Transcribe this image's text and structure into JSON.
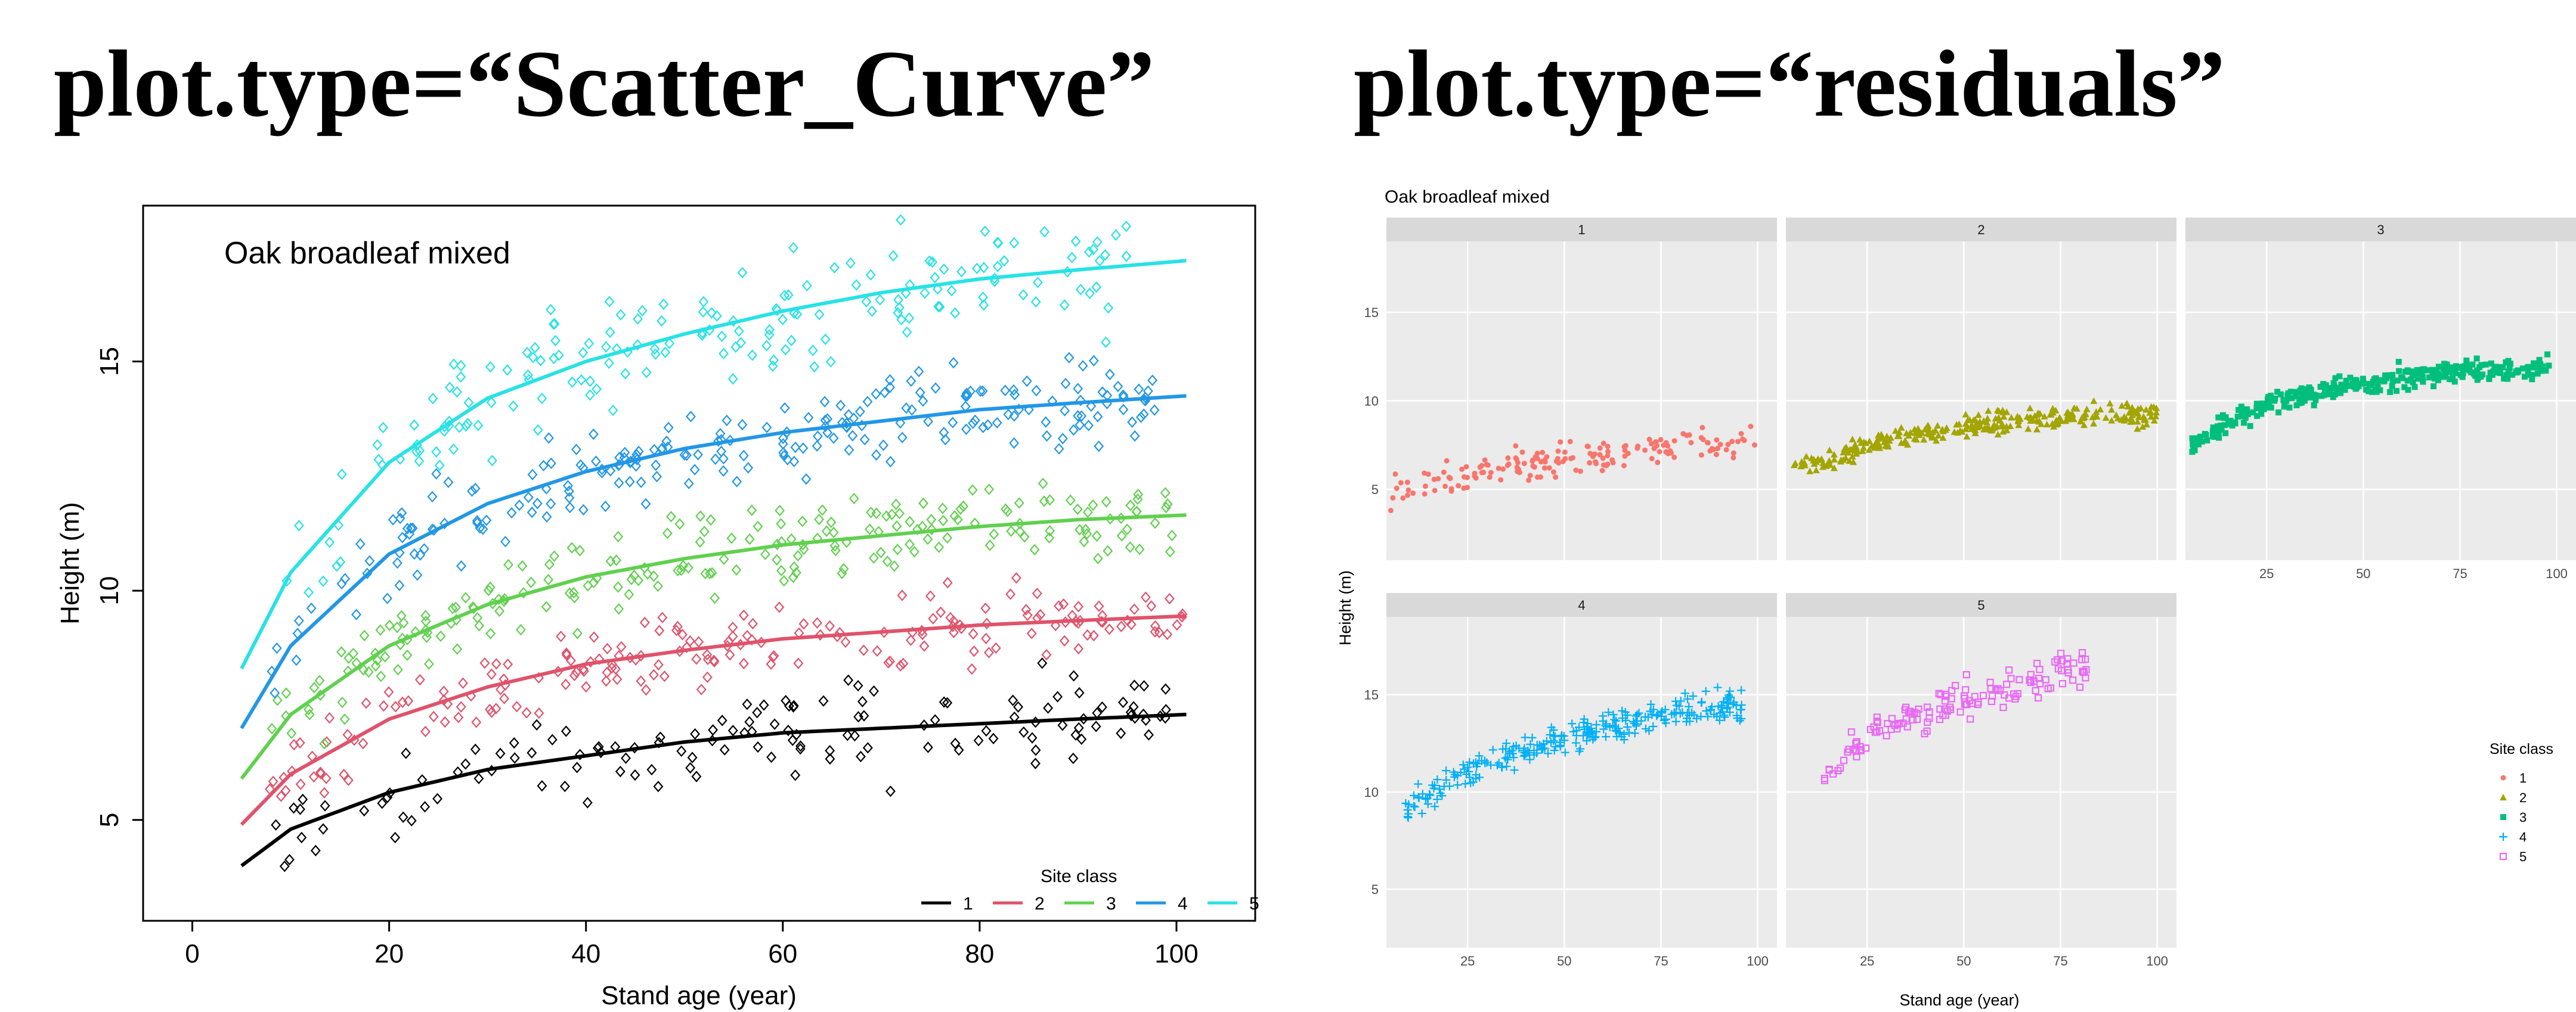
{
  "panels": {
    "left_heading": "plot.type=“Scatter_Curve”",
    "right_heading": "plot.type=“residuals”"
  },
  "colors": {
    "site_1": "#000000",
    "site_2": "#DF536B",
    "site_3": "#61D04F",
    "site_4": "#2297E6",
    "site_5": "#28E2E5",
    "facet_1": "#F8766D",
    "facet_2": "#A3A500",
    "facet_3": "#00BF7D",
    "facet_4": "#00B0F6",
    "facet_5": "#E76BF3",
    "ggplot_panel": "#EBEBEB",
    "ggplot_strip": "#D9D9D9"
  },
  "chart_data": [
    {
      "type": "scatter",
      "title": "Oak broadleaf mixed",
      "xlabel": "Stand age (year)",
      "ylabel": "Height (m)",
      "xlim": [
        -5,
        108
      ],
      "ylim": [
        2.8,
        18.4
      ],
      "x_ticks": [
        0,
        20,
        40,
        60,
        80,
        100
      ],
      "y_ticks": [
        5,
        10,
        15
      ],
      "grid": false,
      "legend": {
        "title": "Site class",
        "position": "bottom-right",
        "orientation": "horizontal",
        "entries": [
          "1",
          "2",
          "3",
          "4",
          "5"
        ]
      },
      "fitted_curves": [
        {
          "name": "1",
          "x": [
            5,
            10,
            20,
            30,
            40,
            50,
            60,
            70,
            80,
            90,
            101
          ],
          "y": [
            4.0,
            4.8,
            5.6,
            6.1,
            6.4,
            6.7,
            6.9,
            7.0,
            7.1,
            7.2,
            7.3
          ]
        },
        {
          "name": "2",
          "x": [
            5,
            10,
            20,
            30,
            40,
            50,
            60,
            70,
            80,
            90,
            101
          ],
          "y": [
            4.9,
            6.0,
            7.2,
            7.9,
            8.4,
            8.7,
            8.95,
            9.1,
            9.25,
            9.35,
            9.45
          ]
        },
        {
          "name": "3",
          "x": [
            5,
            10,
            20,
            30,
            40,
            50,
            60,
            70,
            80,
            90,
            101
          ],
          "y": [
            5.9,
            7.3,
            8.8,
            9.7,
            10.3,
            10.7,
            11.0,
            11.2,
            11.4,
            11.55,
            11.65
          ]
        },
        {
          "name": "4",
          "x": [
            5,
            10,
            20,
            30,
            40,
            50,
            60,
            70,
            80,
            90,
            101
          ],
          "y": [
            7.0,
            8.8,
            10.8,
            11.9,
            12.6,
            13.1,
            13.45,
            13.7,
            13.95,
            14.1,
            14.25
          ]
        },
        {
          "name": "5",
          "x": [
            5,
            10,
            20,
            30,
            40,
            50,
            60,
            70,
            80,
            90,
            101
          ],
          "y": [
            8.3,
            10.4,
            12.8,
            14.2,
            15.0,
            15.6,
            16.1,
            16.5,
            16.8,
            17.0,
            17.2
          ]
        }
      ],
      "point_clouds": [
        {
          "name": "1",
          "x_range": [
            7,
            100
          ],
          "spread": 0.9,
          "count": 140
        },
        {
          "name": "2",
          "x_range": [
            7,
            102
          ],
          "spread": 0.8,
          "count": 200
        },
        {
          "name": "3",
          "x_range": [
            7,
            100
          ],
          "spread": 0.9,
          "count": 220
        },
        {
          "name": "4",
          "x_range": [
            8,
            98
          ],
          "spread": 1.0,
          "count": 230
        },
        {
          "name": "5",
          "x_range": [
            9,
            95
          ],
          "spread": 1.2,
          "count": 180
        }
      ]
    },
    {
      "type": "scatter",
      "title": "Oak broadleaf mixed",
      "xlabel": "Stand age (year)",
      "ylabel": "Height (m)",
      "facet_layout": {
        "rows": 2,
        "cols": 3
      },
      "xlim": [
        4,
        105
      ],
      "x_ticks": [
        25,
        50,
        75,
        100
      ],
      "row_ylims": [
        [
          1,
          19
        ],
        [
          2,
          19
        ]
      ],
      "y_ticks": [
        5,
        10,
        15
      ],
      "grid": true,
      "legend": {
        "title": "Site class",
        "position": "right",
        "entries": [
          "1",
          "2",
          "3",
          "4",
          "5"
        ],
        "shapes": [
          "circle",
          "triangle",
          "square",
          "plus",
          "square-open"
        ]
      },
      "facets": [
        {
          "label": "1",
          "row": 0,
          "col": 0,
          "shape": "circle",
          "x_range": [
            5,
            100
          ],
          "trend": {
            "x": [
              5,
              30,
              60,
              100
            ],
            "y": [
              5.0,
              6.0,
              7.0,
              7.8
            ]
          },
          "spread": 0.9,
          "count": 170
        },
        {
          "label": "2",
          "row": 0,
          "col": 1,
          "shape": "triangle",
          "x_range": [
            5,
            100
          ],
          "trend": {
            "x": [
              5,
              30,
              60,
              100
            ],
            "y": [
              6.0,
              7.8,
              8.9,
              9.3
            ]
          },
          "spread": 0.6,
          "count": 300
        },
        {
          "label": "3",
          "row": 0,
          "col": 2,
          "shape": "square",
          "x_range": [
            5,
            98
          ],
          "trend": {
            "x": [
              5,
              25,
              50,
              70,
              98
            ],
            "y": [
              7.5,
              9.8,
              11.0,
              11.6,
              11.8
            ]
          },
          "spread": 0.6,
          "count": 330
        },
        {
          "label": "4",
          "row": 1,
          "col": 0,
          "shape": "plus",
          "x_range": [
            8,
            96
          ],
          "trend": {
            "x": [
              8,
              30,
              55,
              80,
              96
            ],
            "y": [
              9.0,
              11.5,
              13.0,
              14.2,
              14.5
            ]
          },
          "spread": 0.8,
          "count": 280
        },
        {
          "label": "5",
          "row": 1,
          "col": 1,
          "shape": "square-open",
          "x_range": [
            12,
            82
          ],
          "trend": {
            "x": [
              12,
              30,
              55,
              82
            ],
            "y": [
              10.5,
              13.5,
              15.0,
              16.5
            ]
          },
          "spread": 1.0,
          "count": 140
        }
      ]
    }
  ]
}
